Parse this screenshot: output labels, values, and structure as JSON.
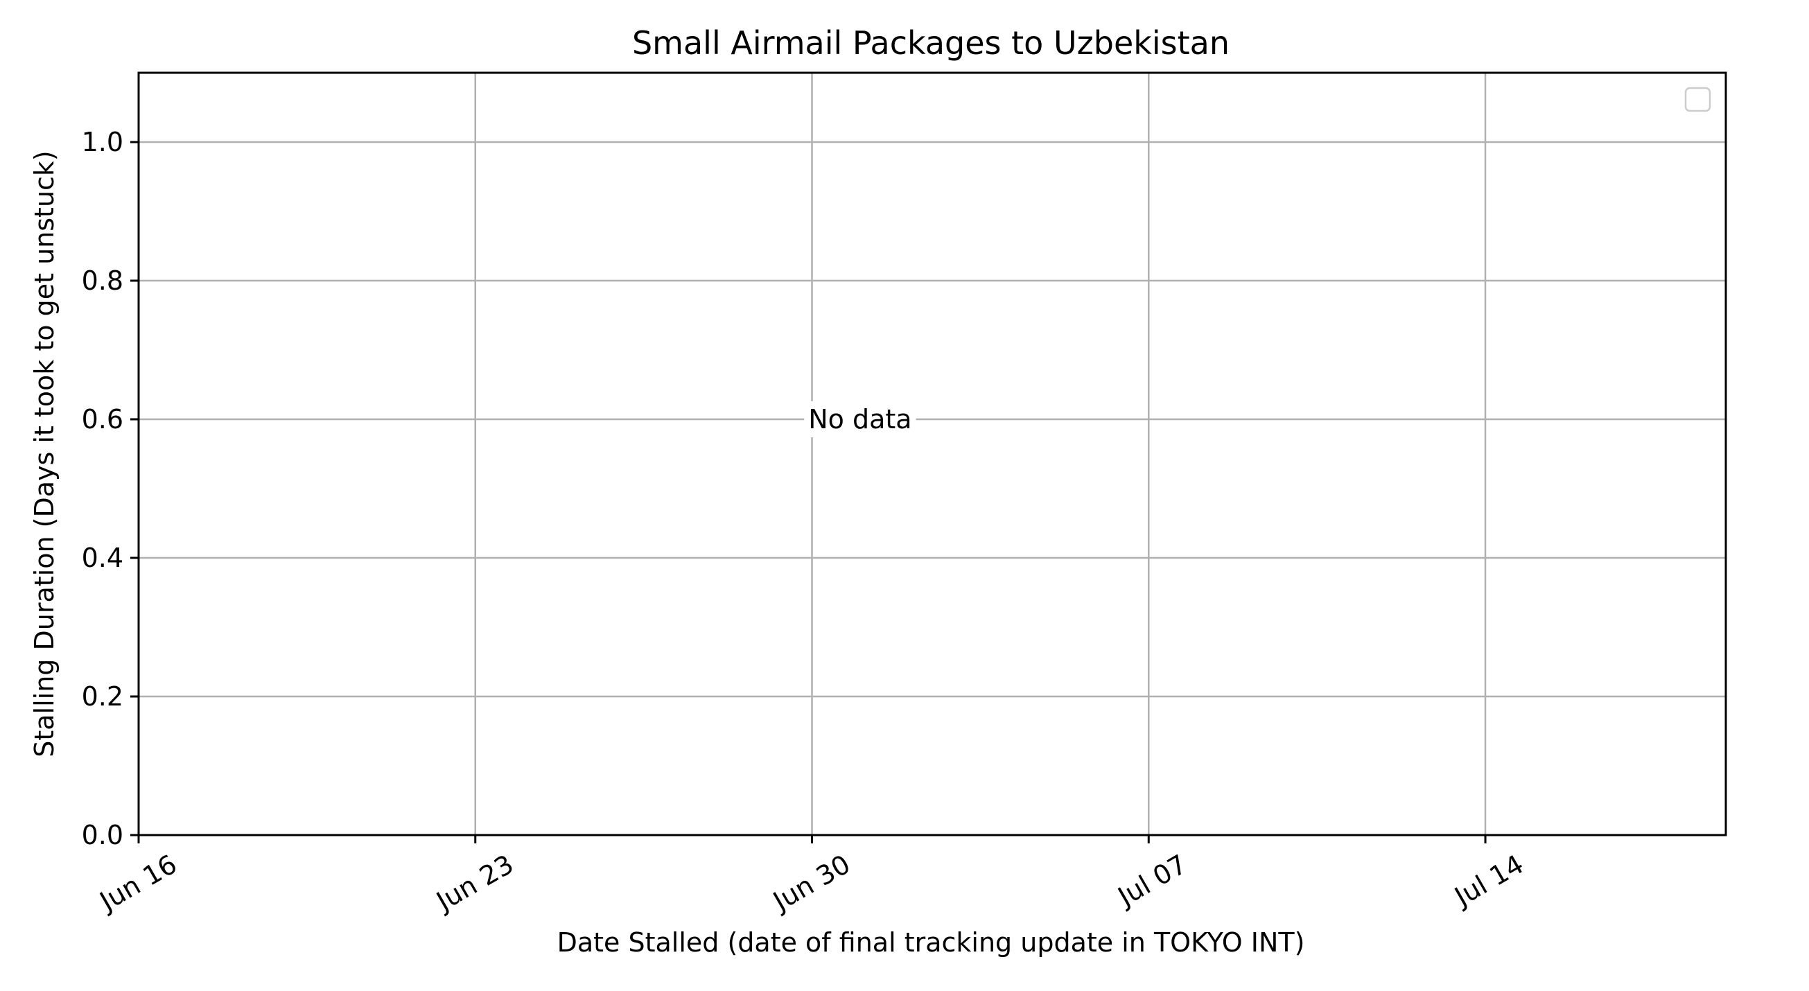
{
  "chart_data": {
    "type": "scatter",
    "title": "Small Airmail Packages to Uzbekistan",
    "xlabel": "Date Stalled (date of final tracking update in TOKYO INT)",
    "ylabel": "Stalling Duration (Days it took to get unstuck)",
    "x_axis": {
      "kind": "date",
      "range": [
        "2024-06-16",
        "2024-07-19"
      ],
      "ticks": [
        {
          "value": "2024-06-16",
          "label": "Jun 16"
        },
        {
          "value": "2024-06-23",
          "label": "Jun 23"
        },
        {
          "value": "2024-06-30",
          "label": "Jun 30"
        },
        {
          "value": "2024-07-07",
          "label": "Jul 07"
        },
        {
          "value": "2024-07-14",
          "label": "Jul 14"
        }
      ]
    },
    "y_axis": {
      "range": [
        0,
        1.1
      ],
      "ticks": [
        {
          "value": 0.0,
          "label": "0.0"
        },
        {
          "value": 0.2,
          "label": "0.2"
        },
        {
          "value": 0.4,
          "label": "0.4"
        },
        {
          "value": 0.6,
          "label": "0.6"
        },
        {
          "value": 0.8,
          "label": "0.8"
        },
        {
          "value": 1.0,
          "label": "1.0"
        }
      ]
    },
    "grid": true,
    "legend": {
      "placement": "top-right",
      "entries": []
    },
    "series": [],
    "annotation": {
      "text": "No data",
      "x": "2024-07-01",
      "y": 0.6
    }
  }
}
